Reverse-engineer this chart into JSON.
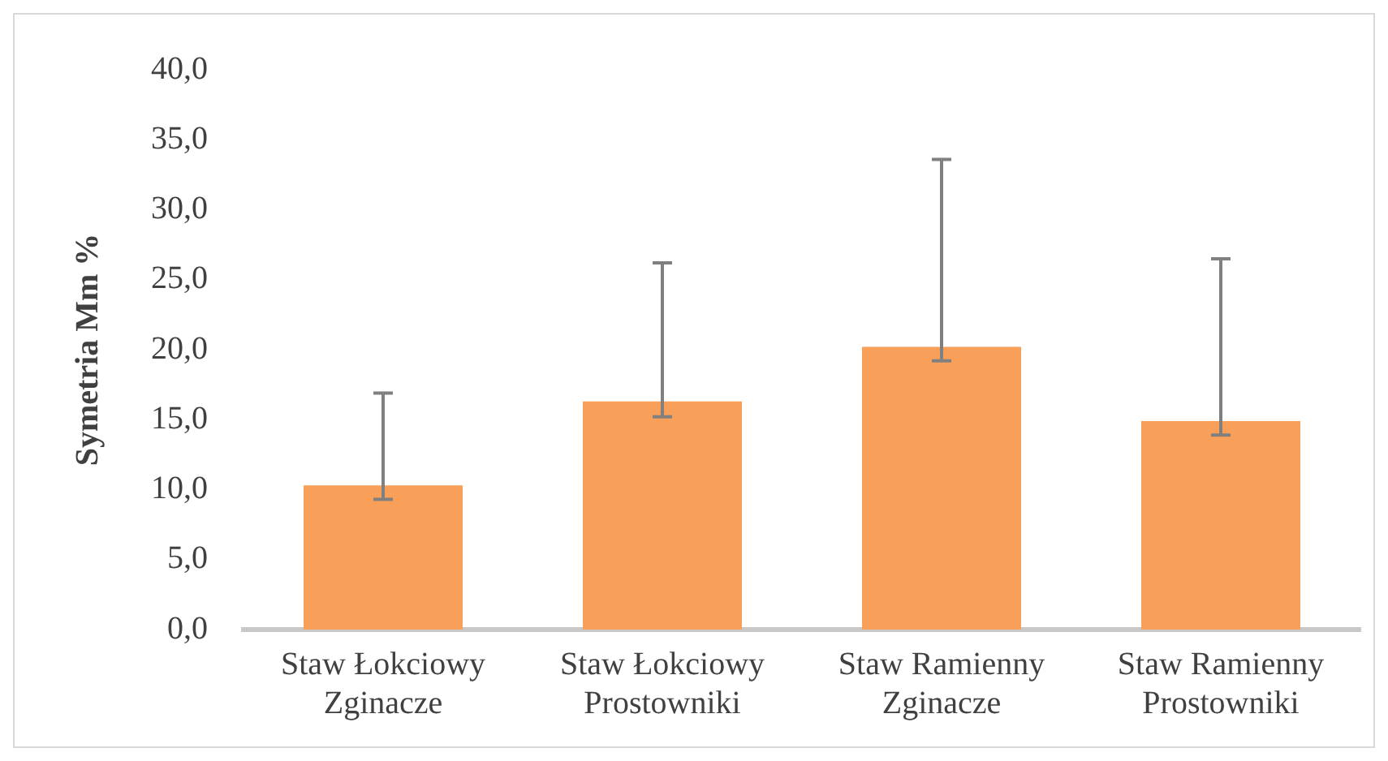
{
  "chart_data": {
    "type": "bar",
    "ylabel": "Symetria Mm %",
    "categories": [
      "Staw Łokciowy Zginacze",
      "Staw Łokciowy Prostowniki",
      "Staw Ramienny Zginacze",
      "Staw Ramienny Prostowniki"
    ],
    "values": [
      10.3,
      16.3,
      20.2,
      14.9
    ],
    "errors": [
      [
        9.3,
        16.9
      ],
      [
        15.2,
        26.2
      ],
      [
        19.2,
        33.6
      ],
      [
        13.9,
        26.5
      ]
    ],
    "color": "#f8a05a",
    "ylim": [
      0,
      40
    ],
    "yticks": [
      {
        "value": 0,
        "label": "0,0"
      },
      {
        "value": 5,
        "label": "5,0"
      },
      {
        "value": 10,
        "label": "10,0"
      },
      {
        "value": 15,
        "label": "15,0"
      },
      {
        "value": 20,
        "label": "20,0"
      },
      {
        "value": 25,
        "label": "25,0"
      },
      {
        "value": 30,
        "label": "30,0"
      },
      {
        "value": 35,
        "label": "35,0"
      },
      {
        "value": 40,
        "label": "40,0"
      }
    ],
    "grid": false,
    "legend": false
  }
}
